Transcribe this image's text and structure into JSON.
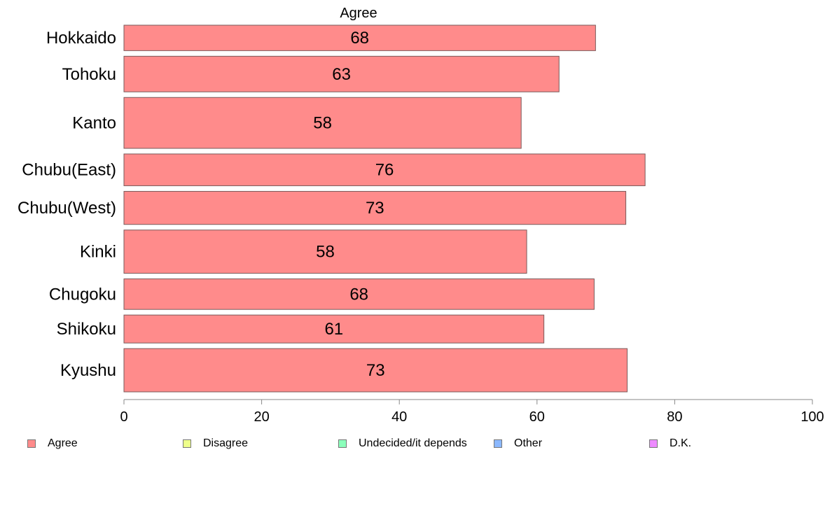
{
  "chart_data": {
    "type": "bar",
    "orientation": "horizontal",
    "title": "Agree",
    "categories": [
      "Hokkaido",
      "Tohoku",
      "Kanto",
      "Chubu(East)",
      "Chubu(West)",
      "Kinki",
      "Chugoku",
      "Shikoku",
      "Kyushu"
    ],
    "series": [
      {
        "name": "Agree",
        "values": [
          68.5,
          63.2,
          57.7,
          75.7,
          72.9,
          58.5,
          68.3,
          61.0,
          73.1
        ]
      }
    ],
    "data_labels": [
      "68",
      "63",
      "58",
      "76",
      "73",
      "58",
      "68",
      "61",
      "73"
    ],
    "bar_weights": [
      1.0,
      1.4,
      2.0,
      1.25,
      1.3,
      1.7,
      1.2,
      1.1,
      1.7
    ],
    "xlim": [
      0,
      100
    ],
    "xticks": [
      0,
      20,
      40,
      60,
      80,
      100
    ],
    "xlabel": "",
    "ylabel": "",
    "grid": false,
    "legend_position": "bottom",
    "colors": {
      "bar_fill": "#ff8b8b",
      "bar_stroke": "#7a5a5a",
      "axis": "#888888"
    }
  },
  "legend": [
    {
      "label": "Agree",
      "color": "#ff8b8b"
    },
    {
      "label": "Disagree",
      "color": "#eeff8b"
    },
    {
      "label": "Undecided/it depends",
      "color": "#8bffbb"
    },
    {
      "label": "Other",
      "color": "#8bb8ff"
    },
    {
      "label": "D.K.",
      "color": "#ee8bff"
    }
  ]
}
